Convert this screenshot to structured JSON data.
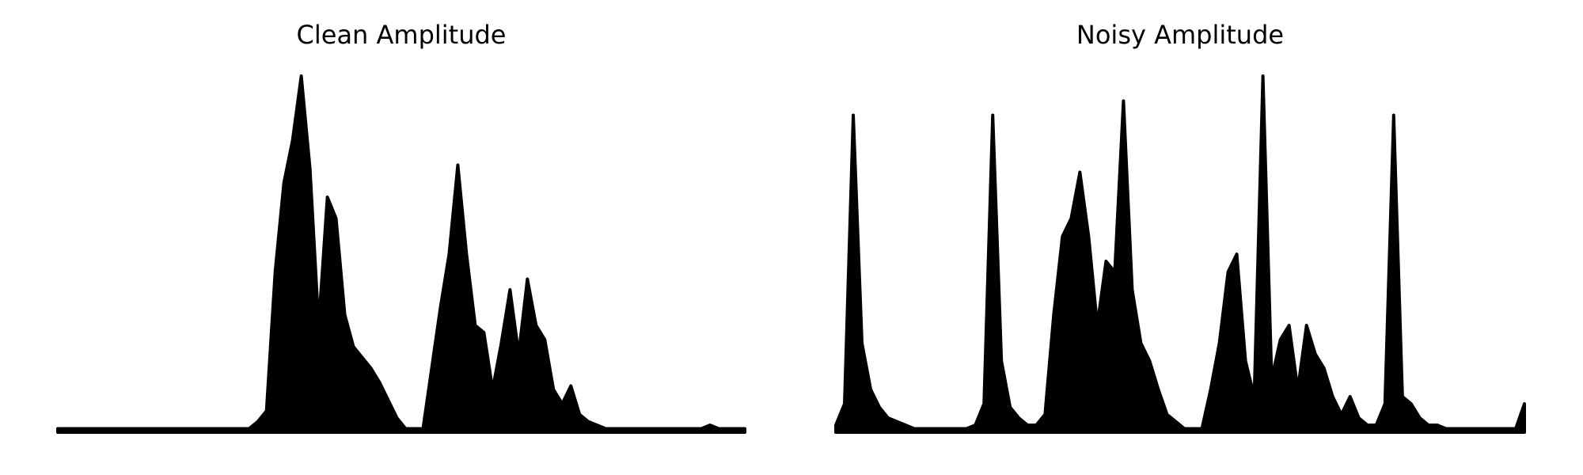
{
  "chart_data": [
    {
      "type": "area",
      "title": "Clean Amplitude",
      "color": "#000000",
      "ylim": [
        0,
        1
      ],
      "values": [
        0.01,
        0.01,
        0.01,
        0.01,
        0.01,
        0.01,
        0.01,
        0.01,
        0.01,
        0.01,
        0.01,
        0.01,
        0.01,
        0.01,
        0.01,
        0.01,
        0.01,
        0.01,
        0.01,
        0.01,
        0.01,
        0.01,
        0.01,
        0.03,
        0.06,
        0.45,
        0.7,
        0.82,
        1.0,
        0.74,
        0.3,
        0.66,
        0.6,
        0.33,
        0.24,
        0.21,
        0.18,
        0.14,
        0.09,
        0.04,
        0.01,
        0.01,
        0.01,
        0.18,
        0.35,
        0.5,
        0.75,
        0.5,
        0.3,
        0.28,
        0.12,
        0.25,
        0.4,
        0.22,
        0.43,
        0.3,
        0.26,
        0.12,
        0.08,
        0.13,
        0.05,
        0.03,
        0.02,
        0.01,
        0.01,
        0.01,
        0.01,
        0.01,
        0.01,
        0.01,
        0.01,
        0.01,
        0.01,
        0.01,
        0.01,
        0.02,
        0.01,
        0.01,
        0.01,
        0.01
      ]
    },
    {
      "type": "area",
      "title": "Noisy Amplitude",
      "color": "#000000",
      "ylim": [
        0,
        1
      ],
      "values": [
        0.02,
        0.08,
        0.89,
        0.25,
        0.12,
        0.07,
        0.04,
        0.03,
        0.02,
        0.01,
        0.01,
        0.01,
        0.01,
        0.01,
        0.01,
        0.01,
        0.02,
        0.08,
        0.89,
        0.2,
        0.07,
        0.04,
        0.02,
        0.02,
        0.05,
        0.33,
        0.55,
        0.6,
        0.73,
        0.55,
        0.3,
        0.48,
        0.45,
        0.93,
        0.4,
        0.25,
        0.2,
        0.12,
        0.05,
        0.03,
        0.01,
        0.01,
        0.01,
        0.12,
        0.25,
        0.45,
        0.5,
        0.2,
        0.1,
        1.0,
        0.15,
        0.26,
        0.3,
        0.12,
        0.3,
        0.22,
        0.18,
        0.1,
        0.05,
        0.1,
        0.04,
        0.02,
        0.02,
        0.08,
        0.89,
        0.1,
        0.08,
        0.04,
        0.02,
        0.02,
        0.01,
        0.01,
        0.01,
        0.01,
        0.01,
        0.01,
        0.01,
        0.01,
        0.01,
        0.08
      ]
    }
  ]
}
